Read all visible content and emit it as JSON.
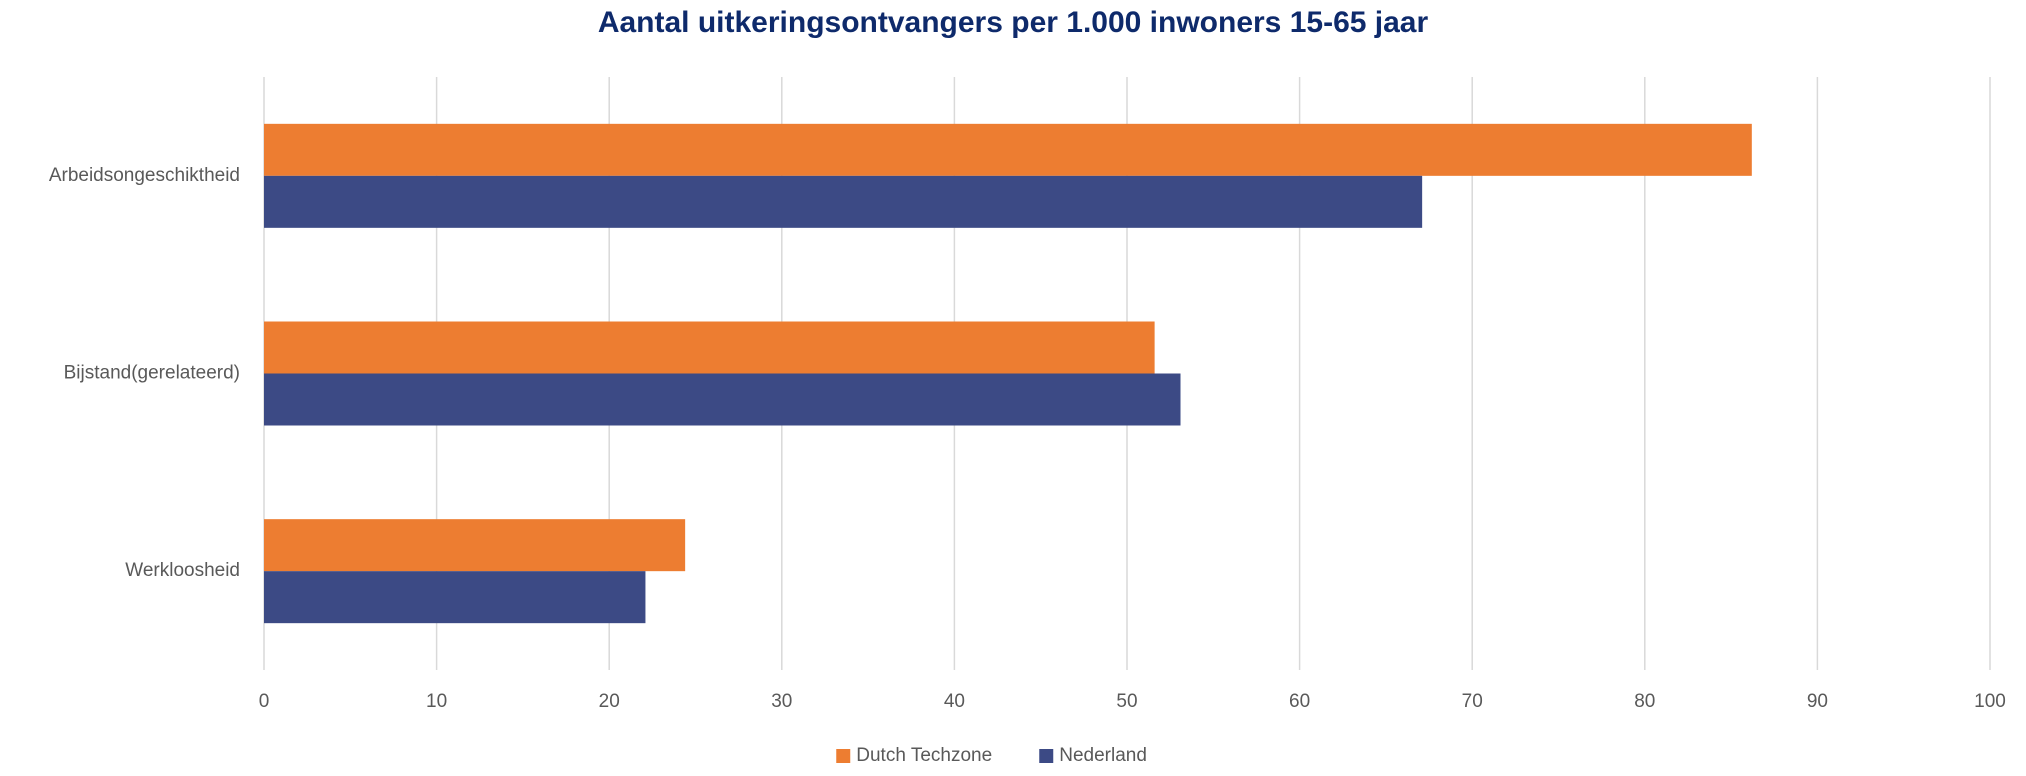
{
  "chart_data": {
    "type": "hbar",
    "title": "Aantal uitkeringsontvangers per 1.000 inwoners 15-65 jaar",
    "categories": [
      "Arbeidsongeschiktheid",
      "Bijstand(gerelateerd)",
      "Werkloosheid"
    ],
    "series": [
      {
        "name": "Dutch Techzone",
        "color": "#ed7d31",
        "values": [
          86.2,
          51.6,
          24.4
        ]
      },
      {
        "name": "Nederland",
        "color": "#3c4a85",
        "values": [
          67.1,
          53.1,
          22.1
        ]
      }
    ],
    "xlim": [
      0,
      100
    ],
    "xticks": [
      0,
      10,
      20,
      30,
      40,
      50,
      60,
      70,
      80,
      90,
      100
    ],
    "grid": true,
    "legend": "bottom"
  }
}
